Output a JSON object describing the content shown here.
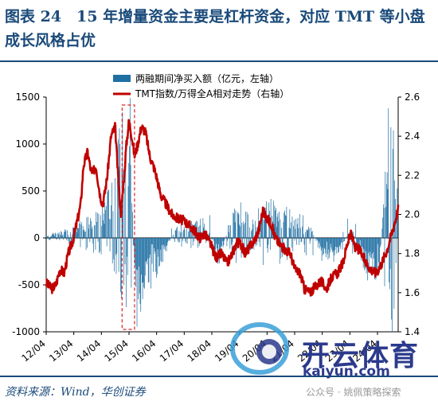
{
  "figure": {
    "title": "图表 24　15 年增量资金主要是杠杆资金，对应 TMT 等小盘成长风格占优",
    "source": "资料来源：Wind，华创证券"
  },
  "watermark": {
    "brand": "开云体育",
    "url": "kaiyun.com",
    "account": "公众号 · 姚佩策略探索"
  },
  "chart_data": {
    "type": "bar+line",
    "legend": [
      "两融期间净买入额（亿元，左轴）",
      "TMT指数/万得全A相对走势（右轴）"
    ],
    "legend_position": "top-right",
    "x_ticks": [
      "12/04",
      "13/04",
      "14/04",
      "15/04",
      "16/04",
      "17/04",
      "18/04",
      "19/04",
      "20/04",
      "21/04",
      "22/04",
      "23/04",
      "24/04"
    ],
    "x_range": [
      2012.25,
      2025.0
    ],
    "y_left": {
      "ticks": [
        "-1000",
        "-500",
        "0",
        "500",
        "1000",
        "1500"
      ],
      "range": [
        -1000,
        1500
      ]
    },
    "y_right": {
      "ticks": [
        "1.4",
        "1.6",
        "1.8",
        "2.0",
        "2.2",
        "2.4",
        "2.6"
      ],
      "range": [
        1.4,
        2.6
      ]
    },
    "highlight_box": {
      "x_from": 2015.0,
      "x_to": 2015.45,
      "style": "red dashed"
    },
    "bar_color": "#1f6fa3",
    "line_color": "#c00000",
    "bar_envelope": [
      [
        2012.25,
        30
      ],
      [
        2012.8,
        60
      ],
      [
        2013.3,
        120
      ],
      [
        2013.8,
        200
      ],
      [
        2014.3,
        280
      ],
      [
        2014.7,
        600
      ],
      [
        2015.0,
        1100
      ],
      [
        2015.3,
        1300
      ],
      [
        2015.5,
        -1000
      ],
      [
        2015.7,
        -700
      ],
      [
        2016.0,
        -500
      ],
      [
        2016.5,
        -200
      ],
      [
        2017.0,
        120
      ],
      [
        2017.5,
        150
      ],
      [
        2018.0,
        180
      ],
      [
        2018.5,
        -250
      ],
      [
        2019.0,
        250
      ],
      [
        2019.3,
        350
      ],
      [
        2019.7,
        150
      ],
      [
        2020.2,
        380
      ],
      [
        2020.7,
        300
      ],
      [
        2021.3,
        250
      ],
      [
        2021.8,
        150
      ],
      [
        2022.3,
        -250
      ],
      [
        2022.8,
        -200
      ],
      [
        2023.3,
        120
      ],
      [
        2023.8,
        -350
      ],
      [
        2024.3,
        -450
      ],
      [
        2024.7,
        1400
      ],
      [
        2025.0,
        300
      ]
    ],
    "line_series": [
      [
        2012.25,
        1.65
      ],
      [
        2012.45,
        1.62
      ],
      [
        2012.6,
        1.64
      ],
      [
        2012.75,
        1.72
      ],
      [
        2012.9,
        1.7
      ],
      [
        2013.05,
        1.8
      ],
      [
        2013.2,
        1.86
      ],
      [
        2013.35,
        1.95
      ],
      [
        2013.5,
        2.05
      ],
      [
        2013.6,
        2.25
      ],
      [
        2013.75,
        2.32
      ],
      [
        2013.9,
        2.2
      ],
      [
        2014.05,
        2.25
      ],
      [
        2014.2,
        2.1
      ],
      [
        2014.3,
        2.05
      ],
      [
        2014.45,
        2.18
      ],
      [
        2014.6,
        2.4
      ],
      [
        2014.75,
        2.45
      ],
      [
        2014.85,
        2.2
      ],
      [
        2014.95,
        2.0
      ],
      [
        2015.05,
        2.15
      ],
      [
        2015.15,
        2.35
      ],
      [
        2015.25,
        2.48
      ],
      [
        2015.35,
        2.4
      ],
      [
        2015.45,
        2.3
      ],
      [
        2015.55,
        2.35
      ],
      [
        2015.7,
        2.45
      ],
      [
        2015.85,
        2.42
      ],
      [
        2016.0,
        2.3
      ],
      [
        2016.2,
        2.22
      ],
      [
        2016.4,
        2.1
      ],
      [
        2016.6,
        2.05
      ],
      [
        2016.8,
        2.0
      ],
      [
        2017.0,
        1.98
      ],
      [
        2017.2,
        1.97
      ],
      [
        2017.4,
        1.95
      ],
      [
        2017.6,
        1.92
      ],
      [
        2017.8,
        1.88
      ],
      [
        2018.0,
        1.9
      ],
      [
        2018.2,
        1.85
      ],
      [
        2018.4,
        1.78
      ],
      [
        2018.6,
        1.8
      ],
      [
        2018.8,
        1.75
      ],
      [
        2019.0,
        1.8
      ],
      [
        2019.15,
        1.86
      ],
      [
        2019.3,
        1.85
      ],
      [
        2019.45,
        1.8
      ],
      [
        2019.6,
        1.83
      ],
      [
        2019.8,
        1.87
      ],
      [
        2019.95,
        1.92
      ],
      [
        2020.1,
        2.02
      ],
      [
        2020.25,
        1.98
      ],
      [
        2020.4,
        1.95
      ],
      [
        2020.55,
        1.88
      ],
      [
        2020.7,
        1.85
      ],
      [
        2020.9,
        1.82
      ],
      [
        2021.1,
        1.8
      ],
      [
        2021.25,
        1.72
      ],
      [
        2021.45,
        1.7
      ],
      [
        2021.6,
        1.62
      ],
      [
        2021.8,
        1.6
      ],
      [
        2022.0,
        1.63
      ],
      [
        2022.2,
        1.66
      ],
      [
        2022.4,
        1.62
      ],
      [
        2022.6,
        1.68
      ],
      [
        2022.8,
        1.7
      ],
      [
        2023.0,
        1.75
      ],
      [
        2023.15,
        1.85
      ],
      [
        2023.3,
        1.9
      ],
      [
        2023.45,
        1.83
      ],
      [
        2023.6,
        1.82
      ],
      [
        2023.8,
        1.76
      ],
      [
        2024.0,
        1.72
      ],
      [
        2024.2,
        1.7
      ],
      [
        2024.4,
        1.75
      ],
      [
        2024.6,
        1.82
      ],
      [
        2024.8,
        1.92
      ],
      [
        2024.95,
        2.0
      ],
      [
        2025.0,
        2.03
      ]
    ]
  }
}
